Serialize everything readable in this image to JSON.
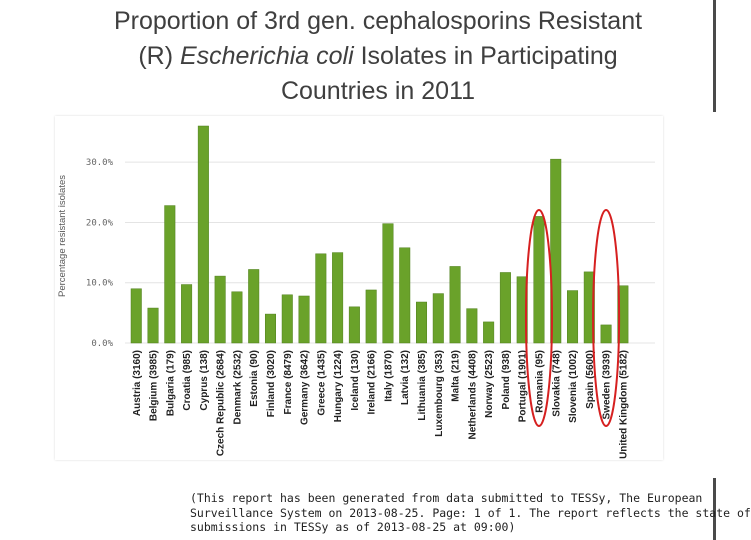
{
  "slide": {
    "title_line1": "Proportion of 3rd gen. cephalosporins Resistant",
    "title_line2_pre": "(R) ",
    "title_line2_italic": "Escherichia coli",
    "title_line2_post": "  Isolates in Participating",
    "title_line3": "Countries in 2011"
  },
  "footnote": {
    "line1": "(This report has been generated from data submitted to TESSy, The European",
    "line2": "Surveillance System on 2013-08-25. Page: 1 of 1. The report reflects the state of",
    "line3": "submissions in TESSy as of 2013-08-25 at 09:00)"
  },
  "chart_data": {
    "type": "bar",
    "ylabel": "Percentage resistant isolates",
    "ylim": [
      0,
      36
    ],
    "yticks": [
      "0.0%",
      "10.0%",
      "20.0%",
      "30.0%"
    ],
    "ytick_values": [
      0,
      10,
      20,
      30
    ],
    "bar_color": "#6aa22a",
    "highlight_color": "#d62020",
    "categories": [
      "Austria (3160)",
      "Belgium (3985)",
      "Bulgaria (179)",
      "Croatia (985)",
      "Cyprus (138)",
      "Czech Republic (2684)",
      "Denmark (2532)",
      "Estonia (90)",
      "Finland (3020)",
      "France (8479)",
      "Germany (3642)",
      "Greece (1435)",
      "Hungary (1224)",
      "Iceland (130)",
      "Ireland (2166)",
      "Italy (1870)",
      "Latvia (132)",
      "Lithuania (385)",
      "Luxembourg (353)",
      "Malta (219)",
      "Netherlands (4408)",
      "Norway (2523)",
      "Poland (938)",
      "Portugal (1901)",
      "Romania (95)",
      "Slovakia (748)",
      "Slovenia (1002)",
      "Spain (5600)",
      "Sweden (3939)",
      "United Kingdom (5182)"
    ],
    "values": [
      9.0,
      5.8,
      22.8,
      9.7,
      36.0,
      11.1,
      8.5,
      12.2,
      4.8,
      8.0,
      7.8,
      14.8,
      15.0,
      6.0,
      8.8,
      19.8,
      15.8,
      6.8,
      8.2,
      12.7,
      5.7,
      3.5,
      11.7,
      11.0,
      21.0,
      30.5,
      8.7,
      11.8,
      3.0,
      9.5
    ],
    "highlighted": [
      "Romania (95)",
      "Sweden (3939)"
    ]
  }
}
